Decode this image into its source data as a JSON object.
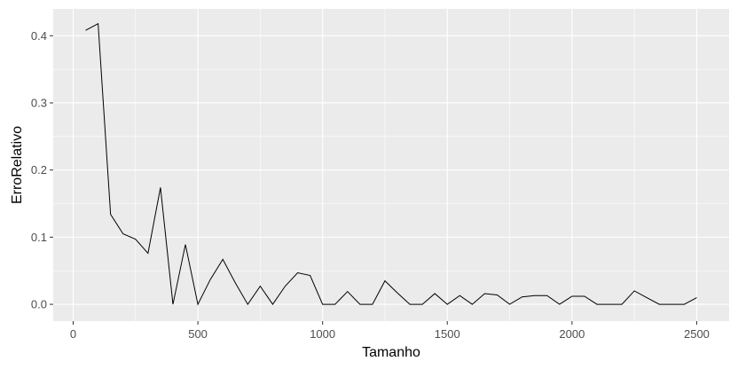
{
  "chart_data": {
    "type": "line",
    "xlabel": "Tamanho",
    "ylabel": "ErroRelativo",
    "xlim": [
      -80,
      2630
    ],
    "ylim": [
      -0.025,
      0.44
    ],
    "x_ticks": [
      0,
      500,
      1000,
      1500,
      2000,
      2500
    ],
    "x_tick_labels": [
      "0",
      "500",
      "1000",
      "1500",
      "2000",
      "2500"
    ],
    "y_ticks": [
      0.0,
      0.1,
      0.2,
      0.3,
      0.4
    ],
    "y_tick_labels": [
      "0.0",
      "0.1",
      "0.2",
      "0.3",
      "0.4"
    ],
    "grid": true,
    "background": "#ebebeb",
    "line_color": "#000000",
    "series": [
      {
        "x": [
          50,
          100,
          150,
          200,
          250,
          300,
          350,
          400,
          450,
          500,
          550,
          600,
          650,
          700,
          750,
          800,
          850,
          900,
          950,
          1000,
          1050,
          1100,
          1150,
          1200,
          1250,
          1300,
          1350,
          1400,
          1450,
          1500,
          1550,
          1600,
          1650,
          1700,
          1750,
          1800,
          1850,
          1900,
          1950,
          2000,
          2050,
          2100,
          2150,
          2200,
          2250,
          2300,
          2350,
          2400,
          2450,
          2500
        ],
        "y": [
          0.408,
          0.418,
          0.134,
          0.105,
          0.097,
          0.076,
          0.174,
          0.0,
          0.089,
          0.0,
          0.037,
          0.067,
          0.032,
          0.0,
          0.027,
          0.0,
          0.027,
          0.047,
          0.043,
          0.0,
          0.0,
          0.019,
          0.0,
          0.0,
          0.035,
          0.017,
          0.0,
          0.0,
          0.016,
          0.0,
          0.013,
          0.0,
          0.016,
          0.014,
          0.0,
          0.011,
          0.013,
          0.013,
          0.0,
          0.012,
          0.012,
          0.0,
          0.0,
          0.0,
          0.02,
          0.01,
          0.0,
          0.0,
          0.0,
          0.01
        ]
      }
    ]
  }
}
